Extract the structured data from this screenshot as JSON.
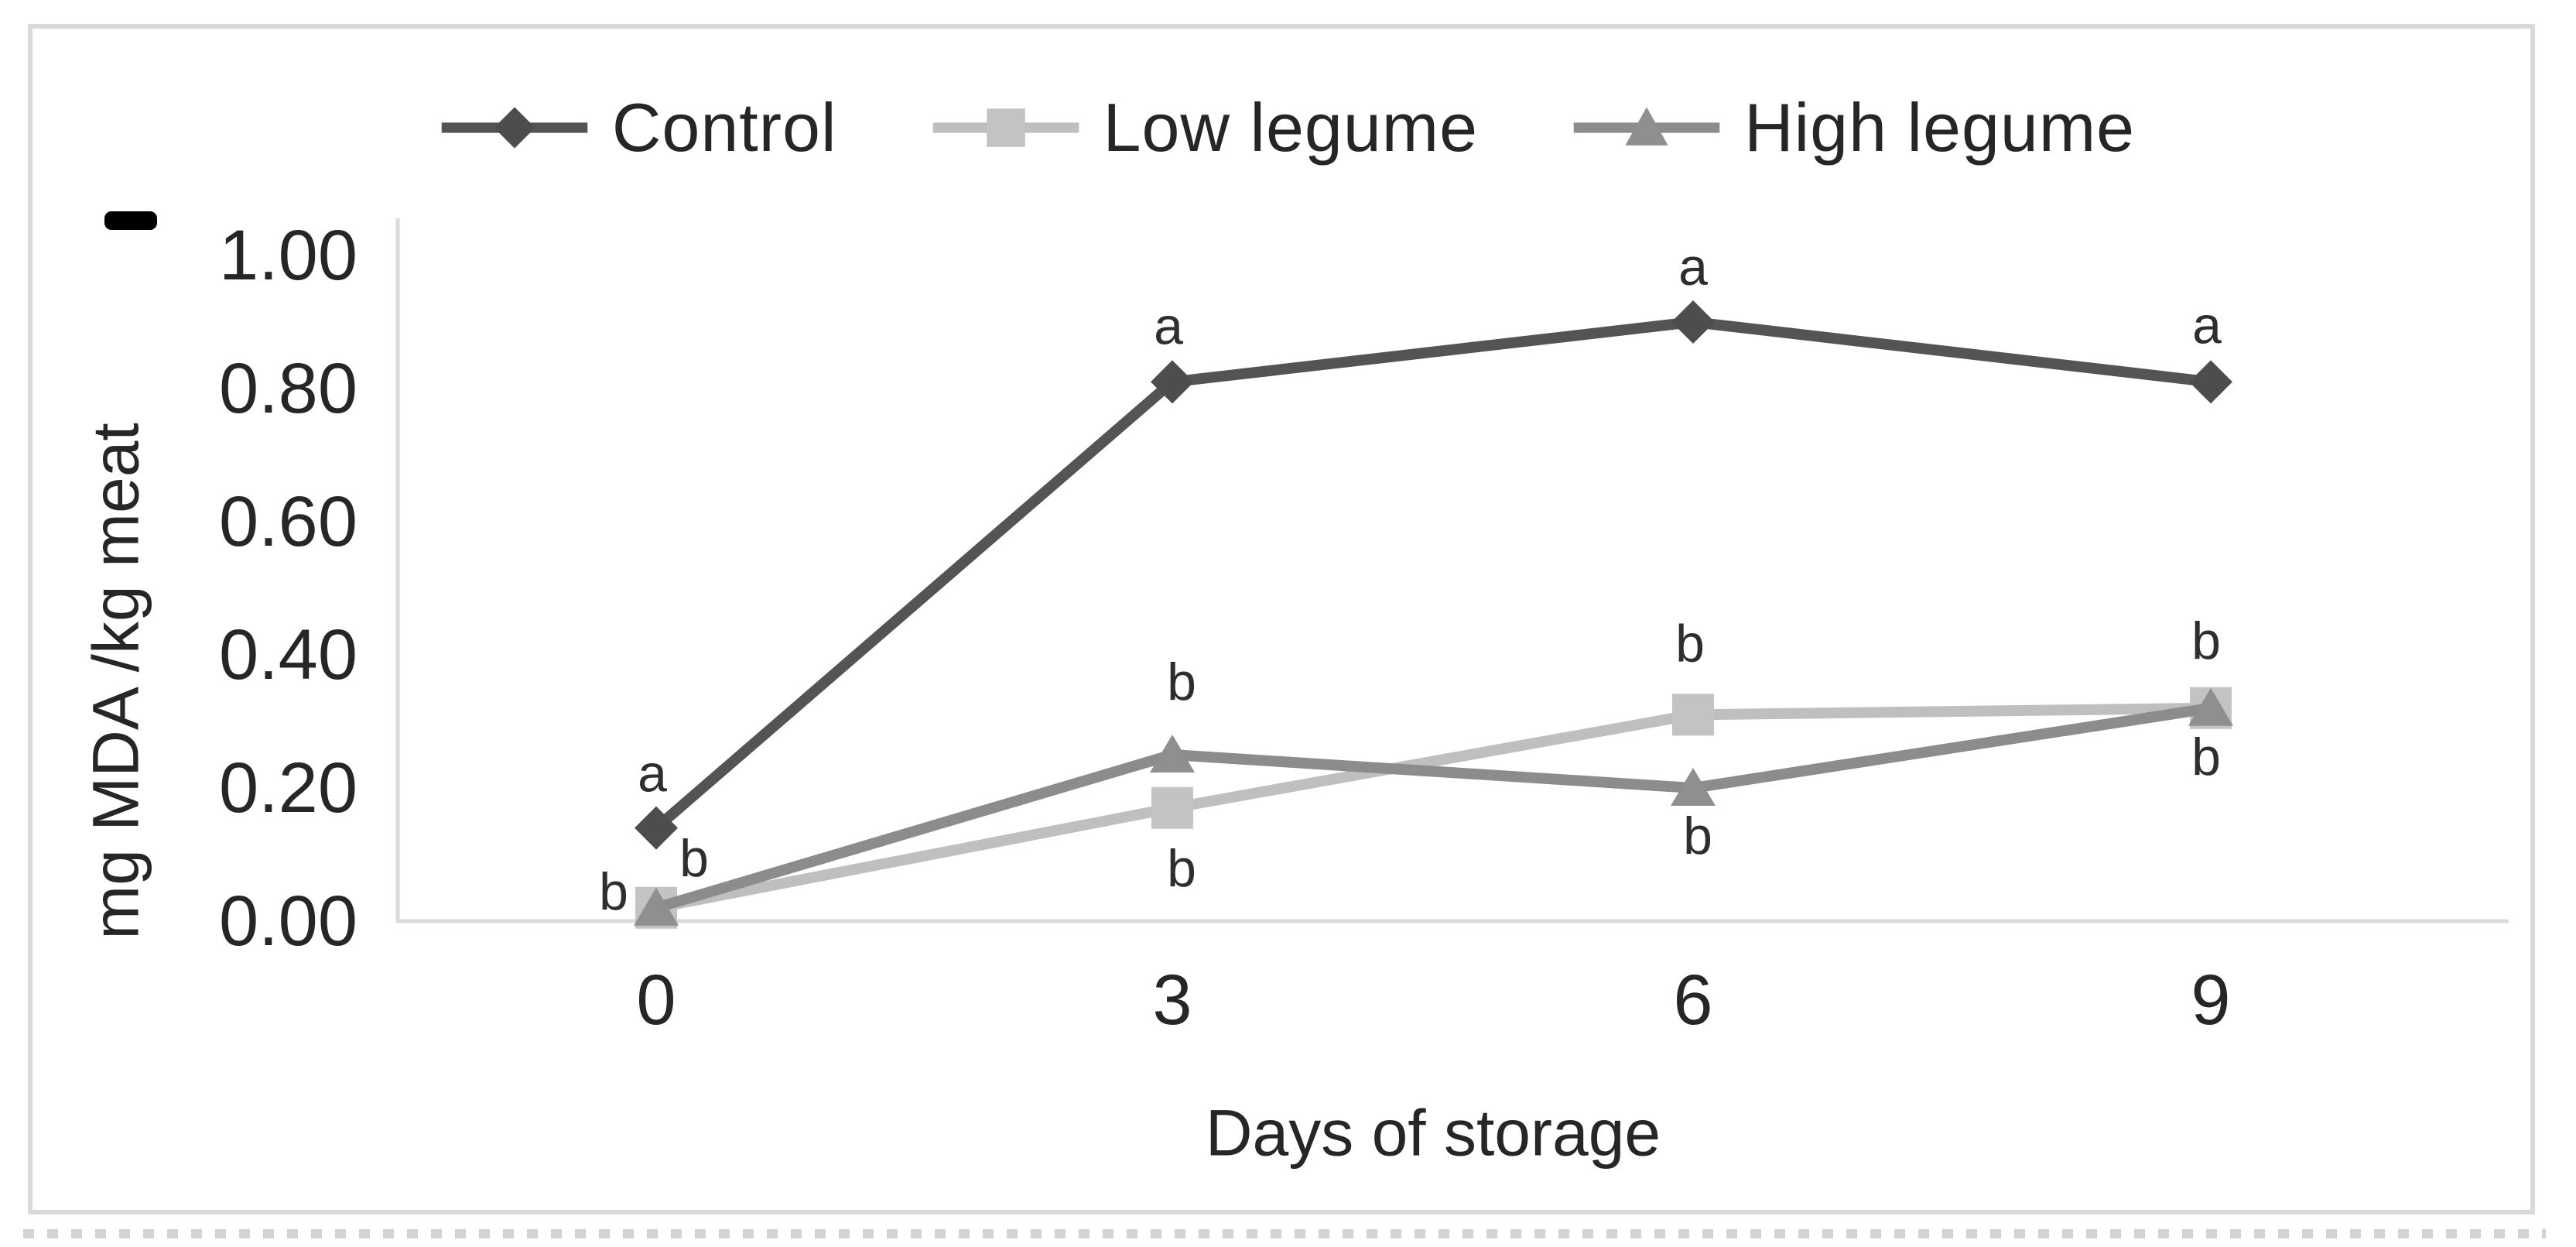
{
  "colors": {
    "control": "#545454",
    "control_marker": "#4d4d4d",
    "low_legume": "#bfbfbf",
    "low_legume_marker": "#c3c3c3",
    "high_legume": "#8c8c8c",
    "high_legume_marker": "#8f8f8f",
    "axis_line": "#dadada",
    "frame_border": "#d9d9d9",
    "text": "#262626",
    "point_label_text": "#2e2e2e",
    "dash_mark": "#000000",
    "background": "#ffffff"
  },
  "legend": {
    "items": [
      {
        "label": "Control",
        "series": "control",
        "marker": "diamond"
      },
      {
        "label": "Low legume",
        "series": "low_legume",
        "marker": "square"
      },
      {
        "label": "High legume",
        "series": "high_legume",
        "marker": "triangle"
      }
    ]
  },
  "chart_data": {
    "type": "line",
    "title": "",
    "categories": [
      0,
      3,
      6,
      9
    ],
    "xlabel": "Days of storage",
    "ylabel": "mg MDA /kg meat",
    "ylim": [
      0,
      1
    ],
    "y_tick_step": 0.2,
    "y_tick_labels": [
      "0.00",
      "0.20",
      "0.40",
      "0.60",
      "0.80",
      "1.00"
    ],
    "x_tick_labels": [
      "0",
      "3",
      "6",
      "9"
    ],
    "grid": false,
    "legend_position": "top",
    "series": [
      {
        "name": "Control",
        "key": "control",
        "marker": "diamond",
        "values": [
          0.14,
          0.81,
          0.9,
          0.81
        ],
        "point_labels": [
          "a",
          "a",
          "a",
          "a"
        ]
      },
      {
        "name": "Low legume",
        "key": "low_legume",
        "marker": "square",
        "values": [
          0.02,
          0.17,
          0.31,
          0.32
        ],
        "point_labels": [
          "b",
          "b",
          "b",
          "b"
        ]
      },
      {
        "name": "High legume",
        "key": "high_legume",
        "marker": "triangle",
        "values": [
          0.02,
          0.25,
          0.2,
          0.32
        ],
        "point_labels": [
          "b",
          "b",
          "b",
          "b"
        ]
      }
    ]
  }
}
